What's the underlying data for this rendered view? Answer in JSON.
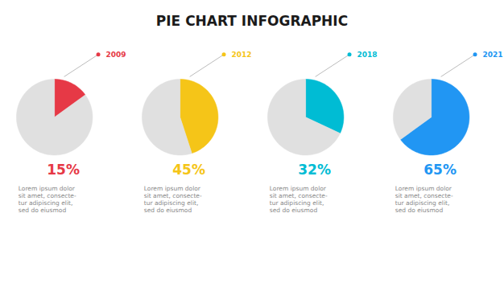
{
  "title": "PIE CHART INFOGRAPHIC",
  "chart_data": [
    {
      "type": "pie",
      "title": "2009",
      "values": [
        15,
        85
      ],
      "colors": [
        "#e63946",
        "#e0e0e0"
      ],
      "data_labels": true,
      "value_labels": [
        "15%",
        null
      ],
      "annotations": [
        "Lorem ipsum dolor\nsit amet, consecte-\ntur adipiscing elit,\nsed do eiusmod"
      ]
    },
    {
      "type": "pie",
      "title": "2012",
      "values": [
        45,
        55
      ],
      "colors": [
        "#f5c518",
        "#e0e0e0"
      ],
      "data_labels": true,
      "value_labels": [
        "45%",
        null
      ],
      "annotations": [
        "Lorem ipsum dolor\nsit amet, consecte-\ntur adipiscing elit,\nsed do eiusmod"
      ]
    },
    {
      "type": "pie",
      "title": "2018",
      "values": [
        32,
        68
      ],
      "colors": [
        "#00bcd4",
        "#e0e0e0"
      ],
      "data_labels": true,
      "value_labels": [
        "32%",
        null
      ],
      "annotations": [
        "Lorem ipsum dolor\nsit amet, consecte-\ntur adipiscing elit,\nsed do eiusmod"
      ]
    },
    {
      "type": "pie",
      "title": "2021",
      "values": [
        65,
        35
      ],
      "colors": [
        "#2196f3",
        "#e0e0e0"
      ],
      "data_labels": true,
      "value_labels": [
        "65%",
        null
      ],
      "annotations": [
        "Lorem ipsum dolor\nsit amet, consecte-\ntur adipiscing elit,\nsed do eiusmod"
      ]
    }
  ]
}
